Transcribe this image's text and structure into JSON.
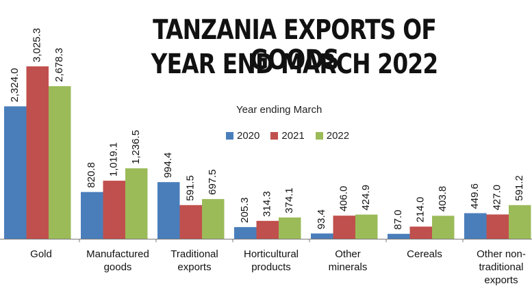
{
  "chart_data": {
    "type": "bar",
    "title": [
      "TANZANIA EXPORTS OF GOODS",
      "YEAR END MARCH 2022"
    ],
    "legend_title": "Year ending March",
    "legend_position": "top-center",
    "categories": [
      "Gold",
      "Manufactured goods",
      "Traditional exports",
      "Horticultural products",
      "Other minerals",
      "Cereals",
      "Other non-traditional exports"
    ],
    "category_lines": [
      [
        "Gold"
      ],
      [
        "Manufactured",
        "goods"
      ],
      [
        "Traditional",
        "exports"
      ],
      [
        "Horticultural",
        "products"
      ],
      [
        "Other",
        "minerals"
      ],
      [
        "Cereals"
      ],
      [
        "Other non-",
        "traditional",
        "exports"
      ]
    ],
    "series": [
      {
        "name": "2020",
        "color": "#4a7ebb",
        "values": [
          2324.0,
          820.8,
          994.4,
          205.3,
          93.4,
          87.0,
          449.6
        ],
        "labels": [
          "2,324.0",
          "820.8",
          "994.4",
          "205.3",
          "93.4",
          "87.0",
          "449.6"
        ]
      },
      {
        "name": "2021",
        "color": "#c0504d",
        "values": [
          3025.3,
          1019.1,
          591.5,
          314.3,
          406.0,
          214.0,
          427.0
        ],
        "labels": [
          "3,025.3",
          "1,019.1",
          "591.5",
          "314.3",
          "406.0",
          "214.0",
          "427.0"
        ]
      },
      {
        "name": "2022",
        "color": "#9bbb59",
        "values": [
          2678.3,
          1236.5,
          697.5,
          374.1,
          424.9,
          403.8,
          591.2
        ],
        "labels": [
          "2,678.3",
          "1,236.5",
          "697.5",
          "374.1",
          "424.9",
          "403.8",
          "591.2"
        ]
      }
    ],
    "ylim": [
      0,
      3025.3
    ],
    "grid": false
  }
}
